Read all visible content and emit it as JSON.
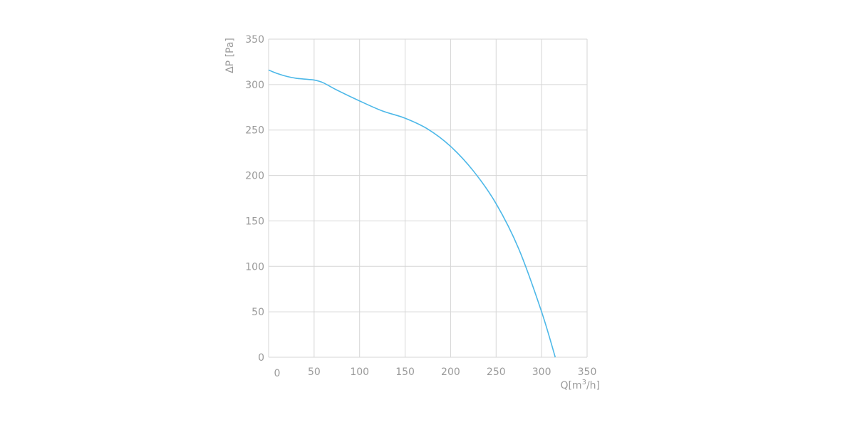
{
  "chart_data": {
    "type": "line",
    "title": "",
    "xlabel": "Q[m",
    "xlabel_sup": "3",
    "xlabel_tail": "/h]",
    "ylabel": "ΔP [Pa]",
    "xlim": [
      0,
      350
    ],
    "ylim": [
      0,
      350
    ],
    "x_ticks": [
      0,
      50,
      100,
      150,
      200,
      250,
      300,
      350
    ],
    "y_ticks": [
      0,
      50,
      100,
      150,
      200,
      250,
      300,
      350
    ],
    "x_tick_labels": [
      "0",
      "50",
      "100",
      "150",
      "200",
      "250",
      "300",
      "350"
    ],
    "y_tick_labels": [
      "0",
      "50",
      "100",
      "150",
      "200",
      "250",
      "300",
      "350"
    ],
    "grid": true,
    "legend": "none",
    "colors": {
      "series": "#4db8e8",
      "grid": "#d6d6d6",
      "text": "#9a9a9a"
    },
    "series": [
      {
        "x": [
          0,
          10,
          20,
          30,
          40,
          50,
          60,
          75,
          100,
          125,
          150,
          175,
          200,
          225,
          250,
          275,
          300,
          315
        ],
        "y": [
          316,
          312,
          309,
          307,
          306,
          305,
          302,
          294,
          282,
          271,
          263,
          251,
          232,
          205,
          169,
          119,
          50,
          0
        ]
      }
    ]
  }
}
